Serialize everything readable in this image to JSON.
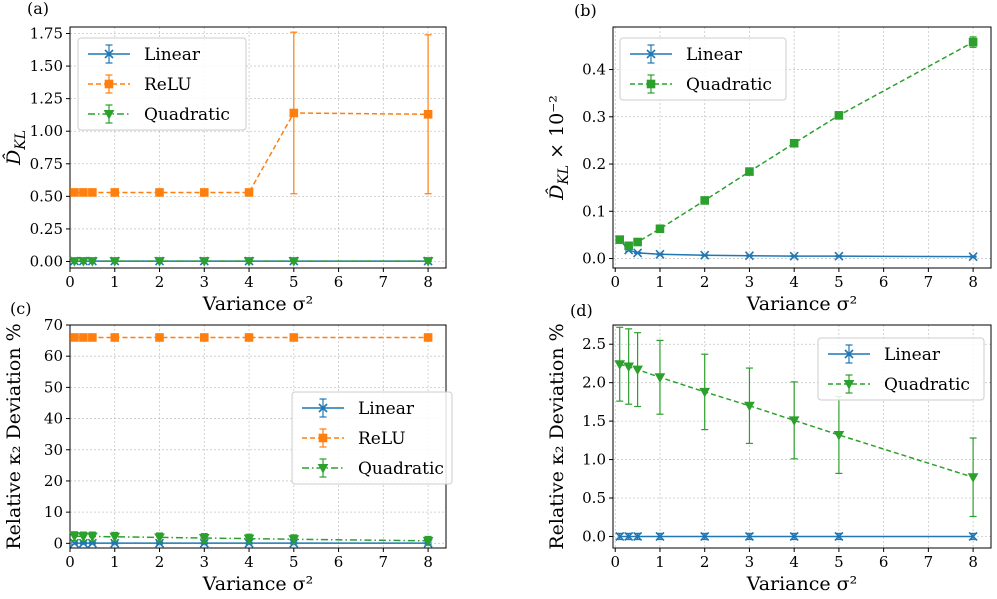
{
  "chart_data": [
    {
      "id": "a",
      "panel_label": "(a)",
      "type": "line",
      "xlabel": "Variance σ²",
      "ylabel": "D̂_KL",
      "ylabel_unit": "",
      "xlim": [
        0,
        8.4
      ],
      "ylim": [
        -0.05,
        1.8
      ],
      "xticks": [
        0,
        1,
        2,
        3,
        4,
        5,
        6,
        7,
        8
      ],
      "yticks": [
        0.0,
        0.25,
        0.5,
        0.75,
        1.0,
        1.25,
        1.5,
        1.75
      ],
      "ytick_labels": [
        "0.00",
        "0.25",
        "0.50",
        "0.75",
        "1.00",
        "1.25",
        "1.50",
        "1.75"
      ],
      "grid": true,
      "legend_position": "top-left",
      "x": [
        0.1,
        0.3,
        0.5,
        1,
        2,
        3,
        4,
        5,
        8
      ],
      "series": [
        {
          "name": "Linear",
          "color": "#1f77b4",
          "marker": "x",
          "dash": "solid",
          "values": [
            0.003,
            0.003,
            0.003,
            0.003,
            0.003,
            0.003,
            0.003,
            0.003,
            0.003
          ],
          "errors": [
            0.004,
            0.004,
            0.004,
            0.004,
            0.004,
            0.004,
            0.004,
            0.004,
            0.004
          ]
        },
        {
          "name": "ReLU",
          "color": "#ff7f0e",
          "marker": "square",
          "dash": "dashed",
          "values": [
            0.53,
            0.53,
            0.53,
            0.53,
            0.53,
            0.53,
            0.53,
            1.14,
            1.13
          ],
          "errors": [
            0.0,
            0.0,
            0.0,
            0.0,
            0.0,
            0.0,
            0.0,
            0.62,
            0.61
          ]
        },
        {
          "name": "Quadratic",
          "color": "#2ca02c",
          "marker": "triangle-down",
          "dash": "dashdot",
          "values": [
            0.003,
            0.003,
            0.003,
            0.003,
            0.003,
            0.003,
            0.003,
            0.003,
            0.003
          ],
          "errors": [
            0.004,
            0.004,
            0.004,
            0.004,
            0.004,
            0.004,
            0.004,
            0.004,
            0.004
          ]
        }
      ]
    },
    {
      "id": "b",
      "panel_label": "(b)",
      "type": "line",
      "xlabel": "Variance σ²",
      "ylabel": "D̂_KL",
      "ylabel_unit": "× 10⁻²",
      "xlim": [
        -0.05,
        8.4
      ],
      "ylim": [
        -0.02,
        0.49
      ],
      "xticks": [
        0,
        1,
        2,
        3,
        4,
        5,
        6,
        7,
        8
      ],
      "yticks": [
        0.0,
        0.1,
        0.2,
        0.3,
        0.4
      ],
      "ytick_labels": [
        "0.0",
        "0.1",
        "0.2",
        "0.3",
        "0.4"
      ],
      "grid": true,
      "legend_position": "top-left",
      "x": [
        0.1,
        0.3,
        0.5,
        1,
        2,
        3,
        4,
        5,
        8
      ],
      "series": [
        {
          "name": "Linear",
          "color": "#1f77b4",
          "marker": "x",
          "dash": "solid",
          "values": [
            0.04,
            0.018,
            0.012,
            0.009,
            0.007,
            0.006,
            0.005,
            0.005,
            0.004
          ],
          "errors": [
            0.002,
            0.002,
            0.001,
            0.001,
            0.001,
            0.001,
            0.001,
            0.001,
            0.001
          ]
        },
        {
          "name": "Quadratic",
          "color": "#2ca02c",
          "marker": "square",
          "dash": "dashed",
          "values": [
            0.04,
            0.027,
            0.035,
            0.063,
            0.123,
            0.184,
            0.244,
            0.303,
            0.458
          ],
          "errors": [
            0.004,
            0.004,
            0.004,
            0.004,
            0.004,
            0.004,
            0.004,
            0.006,
            0.011
          ]
        }
      ]
    },
    {
      "id": "c",
      "panel_label": "(c)",
      "type": "line",
      "xlabel": "Variance σ²",
      "ylabel": "Relative κ₂ Deviation %",
      "ylabel_unit": "",
      "xlim": [
        0,
        8.4
      ],
      "ylim": [
        -1.5,
        70
      ],
      "xticks": [
        0,
        1,
        2,
        3,
        4,
        5,
        6,
        7,
        8
      ],
      "yticks": [
        0,
        10,
        20,
        30,
        40,
        50,
        60,
        70
      ],
      "ytick_labels": [
        "0",
        "10",
        "20",
        "30",
        "40",
        "50",
        "60",
        "70"
      ],
      "grid": true,
      "legend_position": "center-right",
      "x": [
        0.1,
        0.3,
        0.5,
        1,
        2,
        3,
        4,
        5,
        8
      ],
      "series": [
        {
          "name": "Linear",
          "color": "#1f77b4",
          "marker": "x",
          "dash": "solid",
          "values": [
            0.05,
            0.05,
            0.05,
            0.05,
            0.05,
            0.05,
            0.05,
            0.05,
            0.05
          ],
          "errors": [
            0.3,
            0.3,
            0.3,
            0.3,
            0.3,
            0.3,
            0.3,
            0.3,
            0.3
          ]
        },
        {
          "name": "ReLU",
          "color": "#ff7f0e",
          "marker": "square",
          "dash": "dashed",
          "values": [
            66,
            66,
            66,
            66,
            66,
            66,
            66,
            66,
            66
          ],
          "errors": [
            0.3,
            0.3,
            0.3,
            0.3,
            0.3,
            0.3,
            0.3,
            0.3,
            0.3
          ]
        },
        {
          "name": "Quadratic",
          "color": "#2ca02c",
          "marker": "triangle-down",
          "dash": "dashdot",
          "values": [
            2.3,
            2.2,
            2.2,
            2.1,
            1.9,
            1.7,
            1.5,
            1.3,
            0.8
          ],
          "errors": [
            1.4,
            1.4,
            1.4,
            1.4,
            1.4,
            1.4,
            1.4,
            1.4,
            1.4
          ]
        }
      ]
    },
    {
      "id": "d",
      "panel_label": "(d)",
      "type": "line",
      "xlabel": "Variance σ²",
      "ylabel": "Relative κ₂ Deviation %",
      "ylabel_unit": "",
      "xlim": [
        -0.05,
        8.4
      ],
      "ylim": [
        -0.15,
        2.75
      ],
      "xticks": [
        0,
        1,
        2,
        3,
        4,
        5,
        6,
        7,
        8
      ],
      "yticks": [
        0.0,
        0.5,
        1.0,
        1.5,
        2.0,
        2.5
      ],
      "ytick_labels": [
        "0.0",
        "0.5",
        "1.0",
        "1.5",
        "2.0",
        "2.5"
      ],
      "grid": true,
      "legend_position": "top-right",
      "x": [
        0.1,
        0.3,
        0.5,
        1,
        2,
        3,
        4,
        5,
        8
      ],
      "series": [
        {
          "name": "Linear",
          "color": "#1f77b4",
          "marker": "x",
          "dash": "solid",
          "values": [
            0.0,
            0.0,
            0.0,
            0.0,
            0.0,
            0.0,
            0.0,
            0.0,
            0.0
          ],
          "errors": [
            0.04,
            0.04,
            0.04,
            0.04,
            0.04,
            0.04,
            0.04,
            0.04,
            0.04
          ]
        },
        {
          "name": "Quadratic",
          "color": "#2ca02c",
          "marker": "triangle-down",
          "dash": "dashed",
          "values": [
            2.24,
            2.21,
            2.17,
            2.07,
            1.88,
            1.7,
            1.51,
            1.32,
            0.77
          ],
          "errors": [
            0.48,
            0.49,
            0.48,
            0.48,
            0.49,
            0.49,
            0.5,
            0.5,
            0.51
          ]
        }
      ]
    }
  ]
}
